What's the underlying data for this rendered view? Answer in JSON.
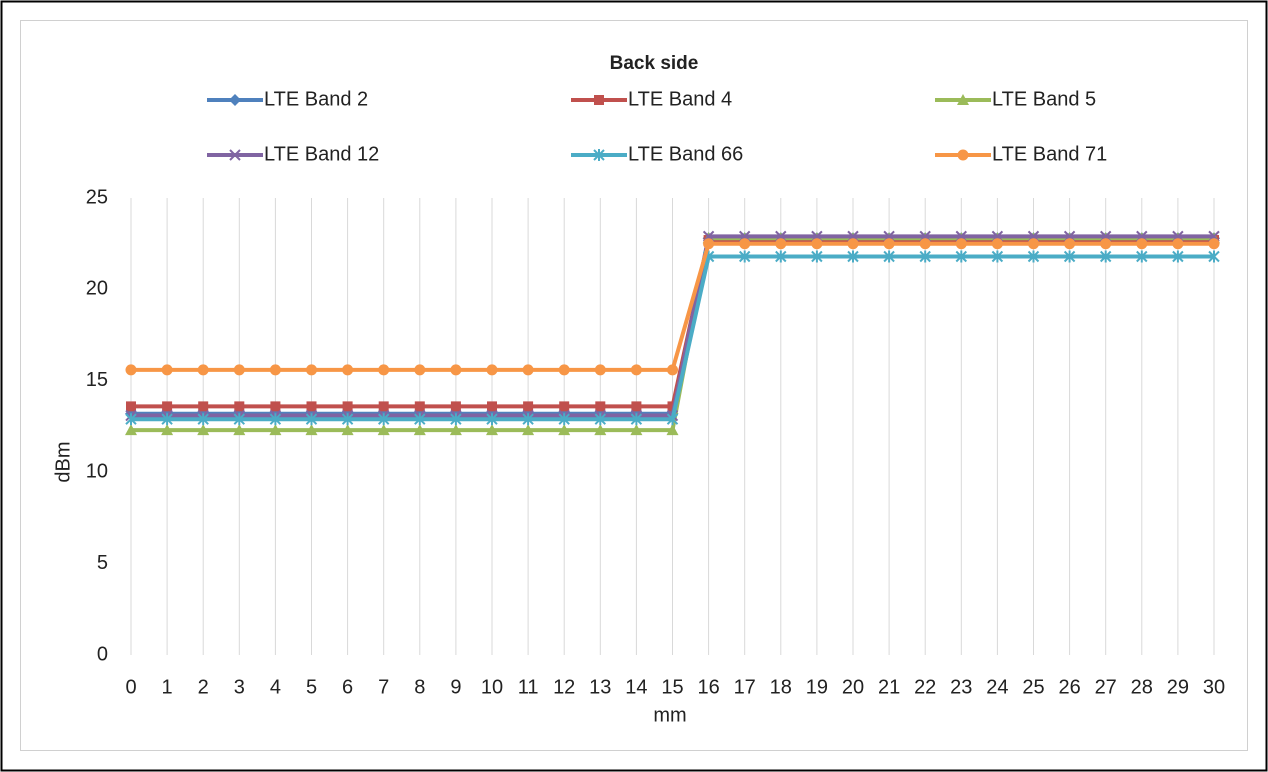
{
  "chart_data": {
    "type": "line",
    "title": "Back side",
    "x": [
      0,
      1,
      2,
      3,
      4,
      5,
      6,
      7,
      8,
      9,
      10,
      11,
      12,
      13,
      14,
      15,
      16,
      17,
      18,
      19,
      20,
      21,
      22,
      23,
      24,
      25,
      26,
      27,
      28,
      29,
      30
    ],
    "xlim": [
      0,
      30
    ],
    "xticks": [
      0,
      1,
      2,
      3,
      4,
      5,
      6,
      7,
      8,
      9,
      10,
      11,
      12,
      13,
      14,
      15,
      16,
      17,
      18,
      19,
      20,
      21,
      22,
      23,
      24,
      25,
      26,
      27,
      28,
      29,
      30
    ],
    "ylim": [
      0,
      25
    ],
    "yticks": [
      0,
      5,
      10,
      15,
      20,
      25
    ],
    "x_label": "mm",
    "y_label": "dBm",
    "grid": "x",
    "legend": "top",
    "series": [
      {
        "name": "LTE Band 2",
        "color": "#4f81bd",
        "marker": "diamond",
        "values": [
          13.2,
          13.2,
          13.2,
          13.2,
          13.2,
          13.2,
          13.2,
          13.2,
          13.2,
          13.2,
          13.2,
          13.2,
          13.2,
          13.2,
          13.2,
          13.2,
          22.8,
          22.8,
          22.8,
          22.8,
          22.8,
          22.8,
          22.8,
          22.8,
          22.8,
          22.8,
          22.8,
          22.8,
          22.8,
          22.8,
          22.8
        ]
      },
      {
        "name": "LTE Band 4",
        "color": "#c0504d",
        "marker": "square",
        "values": [
          13.6,
          13.6,
          13.6,
          13.6,
          13.6,
          13.6,
          13.6,
          13.6,
          13.6,
          13.6,
          13.6,
          13.6,
          13.6,
          13.6,
          13.6,
          13.6,
          22.7,
          22.7,
          22.7,
          22.7,
          22.7,
          22.7,
          22.7,
          22.7,
          22.7,
          22.7,
          22.7,
          22.7,
          22.7,
          22.7,
          22.7
        ]
      },
      {
        "name": "LTE Band 5",
        "color": "#9bbb59",
        "marker": "triangle",
        "values": [
          12.3,
          12.3,
          12.3,
          12.3,
          12.3,
          12.3,
          12.3,
          12.3,
          12.3,
          12.3,
          12.3,
          12.3,
          12.3,
          12.3,
          12.3,
          12.3,
          22.8,
          22.8,
          22.8,
          22.8,
          22.8,
          22.8,
          22.8,
          22.8,
          22.8,
          22.8,
          22.8,
          22.8,
          22.8,
          22.8,
          22.8
        ]
      },
      {
        "name": "LTE Band 12",
        "color": "#8064a2",
        "marker": "x",
        "values": [
          13.1,
          13.1,
          13.1,
          13.1,
          13.1,
          13.1,
          13.1,
          13.1,
          13.1,
          13.1,
          13.1,
          13.1,
          13.1,
          13.1,
          13.1,
          13.1,
          22.9,
          22.9,
          22.9,
          22.9,
          22.9,
          22.9,
          22.9,
          22.9,
          22.9,
          22.9,
          22.9,
          22.9,
          22.9,
          22.9,
          22.9
        ]
      },
      {
        "name": "LTE Band 66",
        "color": "#4bacc6",
        "marker": "star",
        "values": [
          12.9,
          12.9,
          12.9,
          12.9,
          12.9,
          12.9,
          12.9,
          12.9,
          12.9,
          12.9,
          12.9,
          12.9,
          12.9,
          12.9,
          12.9,
          12.9,
          21.8,
          21.8,
          21.8,
          21.8,
          21.8,
          21.8,
          21.8,
          21.8,
          21.8,
          21.8,
          21.8,
          21.8,
          21.8,
          21.8,
          21.8
        ]
      },
      {
        "name": "LTE Band 71",
        "color": "#f79646",
        "marker": "circle",
        "values": [
          15.6,
          15.6,
          15.6,
          15.6,
          15.6,
          15.6,
          15.6,
          15.6,
          15.6,
          15.6,
          15.6,
          15.6,
          15.6,
          15.6,
          15.6,
          15.6,
          22.5,
          22.5,
          22.5,
          22.5,
          22.5,
          22.5,
          22.5,
          22.5,
          22.5,
          22.5,
          22.5,
          22.5,
          22.5,
          22.5,
          22.5
        ]
      }
    ]
  }
}
